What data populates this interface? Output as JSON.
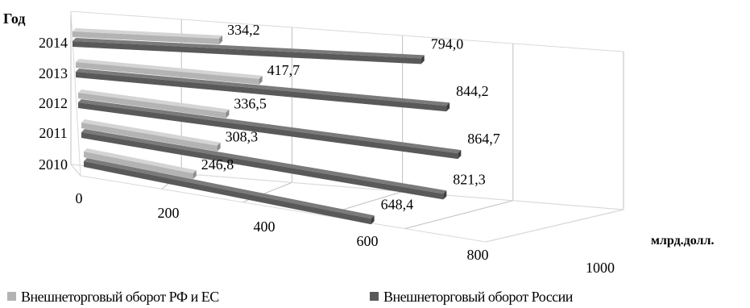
{
  "chart_data": {
    "type": "bar",
    "orientation": "horizontal",
    "style": "3d",
    "ylabel": "Год",
    "xlabel": "млрд.долл.",
    "categories": [
      "2014",
      "2013",
      "2012",
      "2011",
      "2010"
    ],
    "series": [
      {
        "name": "Внешнеторговый оборот РФ и ЕС",
        "color": "#b3b3b3",
        "values": [
          334.2,
          417.7,
          336.5,
          308.3,
          246.8
        ],
        "labels": [
          "334,2",
          "417,7",
          "336,5",
          "308,3",
          "246,8"
        ]
      },
      {
        "name": "Внешнеторговый оборот России",
        "color": "#595959",
        "values": [
          794.0,
          844.2,
          864.7,
          821.3,
          648.4
        ],
        "labels": [
          "794,0",
          "844,2",
          "864,7",
          "821,3",
          "648,4"
        ]
      }
    ],
    "xlim": [
      0,
      1000
    ],
    "xticks": [
      0,
      200,
      400,
      600,
      800,
      1000
    ],
    "grid": true,
    "legend_position": "bottom"
  }
}
